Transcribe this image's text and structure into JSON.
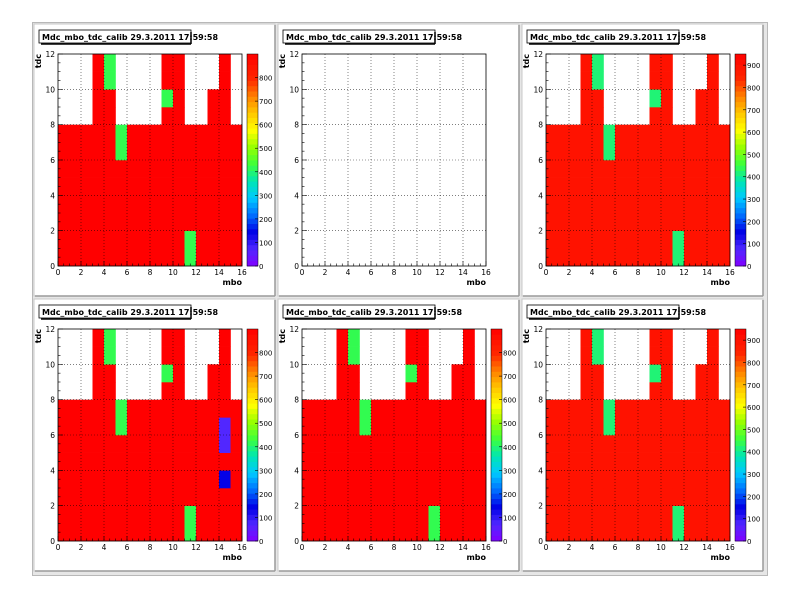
{
  "canvas": {
    "title": "",
    "background": "#e6e6e6"
  },
  "colors": {
    "high": "#ff0000",
    "mid": "#33ff33",
    "low": "#0000ff",
    "lowest": "#6633ff",
    "frame": "#ffffff"
  },
  "chart_data": [
    {
      "type": "heatmap",
      "title": "Mdc_mbo_tdc_calib 29.3.2011 17:59:58",
      "xlabel": "mbo",
      "ylabel": "tdc",
      "xlim": [
        0,
        16
      ],
      "ylim": [
        0,
        12
      ],
      "x_ticks": [
        0,
        2,
        4,
        6,
        8,
        10,
        12,
        14,
        16
      ],
      "y_ticks": [
        0,
        2,
        4,
        6,
        8,
        10,
        12
      ],
      "grid": true,
      "colorbar": {
        "ticks": [
          0,
          100,
          200,
          300,
          400,
          500,
          600,
          700,
          800
        ],
        "max": 900
      },
      "data_z": [
        [
          900,
          900,
          900,
          900,
          900,
          900,
          900,
          900,
          900,
          900,
          900,
          420,
          900,
          900,
          900,
          900
        ],
        [
          900,
          900,
          900,
          900,
          900,
          900,
          900,
          900,
          900,
          900,
          900,
          420,
          900,
          900,
          900,
          900
        ],
        [
          900,
          900,
          900,
          900,
          900,
          900,
          900,
          900,
          900,
          900,
          900,
          900,
          900,
          900,
          900,
          900
        ],
        [
          900,
          900,
          900,
          900,
          900,
          900,
          900,
          900,
          900,
          900,
          900,
          900,
          900,
          900,
          900,
          900
        ],
        [
          900,
          900,
          900,
          900,
          900,
          900,
          900,
          900,
          900,
          900,
          900,
          900,
          900,
          900,
          900,
          900
        ],
        [
          900,
          900,
          900,
          900,
          900,
          900,
          900,
          900,
          900,
          900,
          900,
          900,
          900,
          900,
          900,
          900
        ],
        [
          900,
          900,
          900,
          900,
          900,
          420,
          900,
          900,
          900,
          900,
          900,
          900,
          900,
          900,
          900,
          900
        ],
        [
          900,
          900,
          900,
          900,
          900,
          420,
          900,
          900,
          900,
          900,
          900,
          900,
          900,
          900,
          900,
          900
        ],
        [
          0,
          0,
          0,
          900,
          900,
          0,
          0,
          0,
          0,
          900,
          900,
          0,
          0,
          900,
          900,
          0
        ],
        [
          0,
          0,
          0,
          900,
          900,
          0,
          0,
          0,
          0,
          420,
          900,
          0,
          0,
          900,
          900,
          0
        ],
        [
          0,
          0,
          0,
          900,
          420,
          0,
          0,
          0,
          0,
          900,
          900,
          0,
          0,
          0,
          900,
          0
        ],
        [
          0,
          0,
          0,
          900,
          420,
          0,
          0,
          0,
          0,
          900,
          900,
          0,
          0,
          0,
          900,
          0
        ]
      ]
    },
    {
      "type": "heatmap",
      "title": "Mdc_mbo_tdc_calib 29.3.2011 17:59:58",
      "xlabel": "mbo",
      "ylabel": "tdc",
      "xlim": [
        0,
        16
      ],
      "ylim": [
        0,
        12
      ],
      "x_ticks": [
        0,
        2,
        4,
        6,
        8,
        10,
        12,
        14,
        16
      ],
      "y_ticks": [
        0,
        2,
        4,
        6,
        8,
        10,
        12
      ],
      "grid": true,
      "colorbar": null,
      "data_z": []
    },
    {
      "type": "heatmap",
      "title": "Mdc_mbo_tdc_calib 29.3.2011 17:59:58",
      "xlabel": "mbo",
      "ylabel": "tdc",
      "xlim": [
        0,
        16
      ],
      "ylim": [
        0,
        12
      ],
      "x_ticks": [
        0,
        2,
        4,
        6,
        8,
        10,
        12,
        14,
        16
      ],
      "y_ticks": [
        0,
        2,
        4,
        6,
        8,
        10,
        12
      ],
      "grid": true,
      "colorbar": {
        "ticks": [
          0,
          100,
          200,
          300,
          400,
          500,
          600,
          700,
          800,
          900
        ],
        "max": 950
      },
      "data_z": [
        [
          900,
          900,
          900,
          900,
          900,
          900,
          900,
          900,
          900,
          900,
          900,
          420,
          900,
          900,
          900,
          900
        ],
        [
          900,
          900,
          900,
          900,
          900,
          900,
          900,
          900,
          900,
          900,
          900,
          420,
          900,
          900,
          900,
          900
        ],
        [
          900,
          900,
          900,
          900,
          900,
          900,
          900,
          900,
          900,
          900,
          900,
          900,
          900,
          900,
          900,
          900
        ],
        [
          900,
          900,
          900,
          900,
          900,
          900,
          900,
          900,
          900,
          900,
          900,
          900,
          900,
          900,
          900,
          900
        ],
        [
          900,
          900,
          900,
          900,
          900,
          900,
          900,
          900,
          900,
          900,
          900,
          900,
          900,
          900,
          900,
          900
        ],
        [
          900,
          900,
          900,
          900,
          900,
          900,
          900,
          900,
          900,
          900,
          900,
          900,
          900,
          900,
          900,
          900
        ],
        [
          900,
          900,
          900,
          900,
          900,
          420,
          900,
          900,
          900,
          900,
          900,
          900,
          900,
          900,
          900,
          900
        ],
        [
          900,
          900,
          900,
          900,
          900,
          420,
          900,
          900,
          900,
          900,
          900,
          900,
          900,
          900,
          900,
          900
        ],
        [
          0,
          0,
          0,
          900,
          900,
          0,
          0,
          0,
          0,
          900,
          900,
          0,
          0,
          900,
          900,
          0
        ],
        [
          0,
          0,
          0,
          900,
          900,
          0,
          0,
          0,
          0,
          420,
          900,
          0,
          0,
          900,
          900,
          0
        ],
        [
          0,
          0,
          0,
          900,
          420,
          0,
          0,
          0,
          0,
          900,
          900,
          0,
          0,
          0,
          900,
          0
        ],
        [
          0,
          0,
          0,
          900,
          420,
          0,
          0,
          0,
          0,
          900,
          900,
          0,
          0,
          0,
          900,
          0
        ]
      ]
    },
    {
      "type": "heatmap",
      "title": "Mdc_mbo_tdc_calib 29.3.2011 17:59:58",
      "xlabel": "mbo",
      "ylabel": "tdc",
      "xlim": [
        0,
        16
      ],
      "ylim": [
        0,
        12
      ],
      "x_ticks": [
        0,
        2,
        4,
        6,
        8,
        10,
        12,
        14,
        16
      ],
      "y_ticks": [
        0,
        2,
        4,
        6,
        8,
        10,
        12
      ],
      "grid": true,
      "colorbar": {
        "ticks": [
          0,
          100,
          200,
          300,
          400,
          500,
          600,
          700,
          800
        ],
        "max": 900
      },
      "data_z": [
        [
          900,
          900,
          900,
          900,
          900,
          900,
          900,
          900,
          900,
          900,
          900,
          420,
          900,
          900,
          900,
          900
        ],
        [
          900,
          900,
          900,
          900,
          900,
          900,
          900,
          900,
          900,
          900,
          900,
          420,
          900,
          900,
          900,
          900
        ],
        [
          900,
          900,
          900,
          900,
          900,
          900,
          900,
          900,
          900,
          900,
          900,
          900,
          900,
          900,
          900,
          900
        ],
        [
          900,
          900,
          900,
          900,
          900,
          900,
          900,
          900,
          900,
          900,
          900,
          900,
          900,
          900,
          140,
          900
        ],
        [
          900,
          900,
          900,
          900,
          900,
          900,
          900,
          900,
          900,
          900,
          900,
          900,
          900,
          900,
          900,
          900
        ],
        [
          900,
          900,
          900,
          900,
          900,
          900,
          900,
          900,
          900,
          900,
          900,
          900,
          900,
          900,
          70,
          900
        ],
        [
          900,
          900,
          900,
          900,
          900,
          420,
          900,
          900,
          900,
          900,
          900,
          900,
          900,
          900,
          70,
          900
        ],
        [
          900,
          900,
          900,
          900,
          900,
          420,
          900,
          900,
          900,
          900,
          900,
          900,
          900,
          900,
          900,
          900
        ],
        [
          0,
          0,
          0,
          900,
          900,
          0,
          0,
          0,
          0,
          900,
          900,
          0,
          0,
          900,
          900,
          0
        ],
        [
          0,
          0,
          0,
          900,
          900,
          0,
          0,
          0,
          0,
          420,
          900,
          0,
          0,
          900,
          900,
          0
        ],
        [
          0,
          0,
          0,
          900,
          420,
          0,
          0,
          0,
          0,
          900,
          900,
          0,
          0,
          0,
          900,
          0
        ],
        [
          0,
          0,
          0,
          900,
          420,
          0,
          0,
          0,
          0,
          900,
          900,
          0,
          0,
          0,
          900,
          0
        ]
      ]
    },
    {
      "type": "heatmap",
      "title": "Mdc_mbo_tdc_calib 29.3.2011 17:59:58",
      "xlabel": "mbo",
      "ylabel": "tdc",
      "xlim": [
        0,
        16
      ],
      "ylim": [
        0,
        12
      ],
      "x_ticks": [
        0,
        2,
        4,
        6,
        8,
        10,
        12,
        14,
        16
      ],
      "y_ticks": [
        0,
        2,
        4,
        6,
        8,
        10,
        12
      ],
      "grid": true,
      "colorbar": {
        "ticks": [
          0,
          100,
          200,
          300,
          400,
          500,
          600,
          700,
          800
        ],
        "max": 900
      },
      "data_z": [
        [
          900,
          900,
          900,
          900,
          900,
          900,
          900,
          900,
          900,
          900,
          900,
          420,
          900,
          900,
          900,
          900
        ],
        [
          900,
          900,
          900,
          900,
          900,
          900,
          900,
          900,
          900,
          900,
          900,
          420,
          900,
          900,
          900,
          900
        ],
        [
          900,
          900,
          900,
          900,
          900,
          900,
          900,
          900,
          900,
          900,
          900,
          900,
          900,
          900,
          900,
          900
        ],
        [
          900,
          900,
          900,
          900,
          900,
          900,
          900,
          900,
          900,
          900,
          900,
          900,
          900,
          900,
          900,
          900
        ],
        [
          900,
          900,
          900,
          900,
          900,
          900,
          900,
          900,
          900,
          900,
          900,
          900,
          900,
          900,
          900,
          900
        ],
        [
          900,
          900,
          900,
          900,
          900,
          900,
          900,
          900,
          900,
          900,
          900,
          900,
          900,
          900,
          900,
          900
        ],
        [
          900,
          900,
          900,
          900,
          900,
          420,
          900,
          900,
          900,
          900,
          900,
          900,
          900,
          900,
          900,
          900
        ],
        [
          900,
          900,
          900,
          900,
          900,
          420,
          900,
          900,
          900,
          900,
          900,
          900,
          900,
          900,
          900,
          900
        ],
        [
          0,
          0,
          0,
          900,
          900,
          0,
          0,
          0,
          0,
          900,
          900,
          0,
          0,
          900,
          900,
          0
        ],
        [
          0,
          0,
          0,
          900,
          900,
          0,
          0,
          0,
          0,
          420,
          900,
          0,
          0,
          900,
          900,
          0
        ],
        [
          0,
          0,
          0,
          900,
          420,
          0,
          0,
          0,
          0,
          900,
          900,
          0,
          0,
          0,
          900,
          0
        ],
        [
          0,
          0,
          0,
          900,
          420,
          0,
          0,
          0,
          0,
          900,
          900,
          0,
          0,
          0,
          900,
          0
        ]
      ]
    },
    {
      "type": "heatmap",
      "title": "Mdc_mbo_tdc_calib 29.3.2011 17:59:58",
      "xlabel": "mbo",
      "ylabel": "tdc",
      "xlim": [
        0,
        16
      ],
      "ylim": [
        0,
        12
      ],
      "x_ticks": [
        0,
        2,
        4,
        6,
        8,
        10,
        12,
        14,
        16
      ],
      "y_ticks": [
        0,
        2,
        4,
        6,
        8,
        10,
        12
      ],
      "grid": true,
      "colorbar": {
        "ticks": [
          0,
          100,
          200,
          300,
          400,
          500,
          600,
          700,
          800,
          900
        ],
        "max": 950
      },
      "data_z": [
        [
          900,
          900,
          900,
          900,
          900,
          900,
          900,
          900,
          900,
          900,
          900,
          420,
          900,
          900,
          900,
          900
        ],
        [
          900,
          900,
          900,
          900,
          900,
          900,
          900,
          900,
          900,
          900,
          900,
          420,
          900,
          900,
          900,
          900
        ],
        [
          900,
          900,
          900,
          900,
          900,
          900,
          900,
          900,
          900,
          900,
          900,
          900,
          900,
          900,
          900,
          900
        ],
        [
          900,
          900,
          900,
          900,
          900,
          900,
          900,
          900,
          900,
          900,
          900,
          900,
          900,
          900,
          900,
          900
        ],
        [
          900,
          900,
          900,
          900,
          900,
          900,
          900,
          900,
          900,
          900,
          900,
          900,
          900,
          900,
          900,
          900
        ],
        [
          900,
          900,
          900,
          900,
          900,
          900,
          900,
          900,
          900,
          900,
          900,
          900,
          900,
          900,
          900,
          900
        ],
        [
          900,
          900,
          900,
          900,
          900,
          420,
          900,
          900,
          900,
          900,
          900,
          900,
          900,
          900,
          900,
          900
        ],
        [
          900,
          900,
          900,
          900,
          900,
          420,
          900,
          900,
          900,
          900,
          900,
          900,
          900,
          900,
          900,
          900
        ],
        [
          0,
          0,
          0,
          900,
          900,
          0,
          0,
          0,
          0,
          900,
          900,
          0,
          0,
          900,
          900,
          0
        ],
        [
          0,
          0,
          0,
          900,
          900,
          0,
          0,
          0,
          0,
          420,
          900,
          0,
          0,
          900,
          900,
          0
        ],
        [
          0,
          0,
          0,
          900,
          420,
          0,
          0,
          0,
          0,
          900,
          900,
          0,
          0,
          0,
          900,
          0
        ],
        [
          0,
          0,
          0,
          900,
          420,
          0,
          0,
          0,
          0,
          900,
          900,
          0,
          0,
          0,
          900,
          0
        ]
      ]
    }
  ]
}
